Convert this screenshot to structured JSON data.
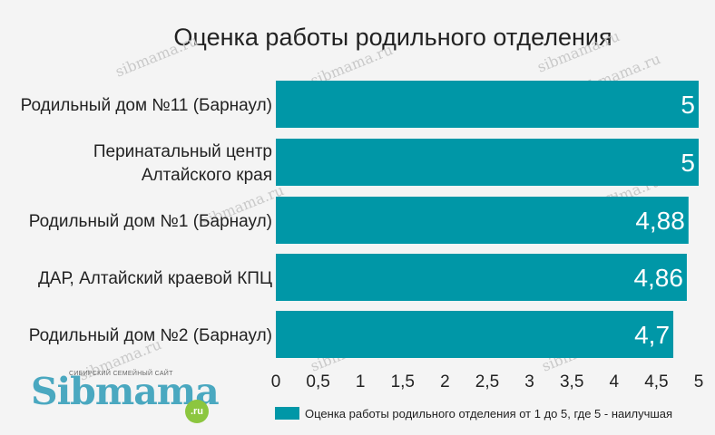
{
  "chart_data": {
    "type": "bar",
    "orientation": "horizontal",
    "title": "Оценка работы родильного отделения",
    "categories": [
      [
        "Родильный дом №11 (Барнаул)"
      ],
      [
        "Перинатальный центр",
        "Алтайского края"
      ],
      [
        "Родильный дом №1 (Барнаул)"
      ],
      [
        "ДАР, Алтайский краевой КПЦ"
      ],
      [
        "Родильный дом №2 (Барнаул)"
      ]
    ],
    "values": [
      5,
      5,
      4.88,
      4.86,
      4.7
    ],
    "value_labels": [
      "5",
      "5",
      "4,88",
      "4,86",
      "4,7"
    ],
    "xlim": [
      0,
      5
    ],
    "xticks": [
      0,
      0.5,
      1,
      1.5,
      2,
      2.5,
      3,
      3.5,
      4,
      4.5,
      5
    ],
    "xtick_labels": [
      "0",
      "0,5",
      "1",
      "1,5",
      "2",
      "2,5",
      "3",
      "3,5",
      "4",
      "4,5",
      "5"
    ],
    "legend": {
      "placement": "bottom-right",
      "entries": [
        "Оценка работы родильного отделения от 1 до 5, где 5 - наилучшая"
      ]
    },
    "bar_color": "#0097a7",
    "grid": false
  },
  "watermark": {
    "text": "sibmama.ru"
  },
  "logo": {
    "tagline": "СИБИРСКИЙ СЕМЕЙНЫЙ САЙТ",
    "name": "Sibmama",
    "suffix": ".ru",
    "name_color": "#4aa8c0",
    "suffix_color": "#8cc63f"
  }
}
